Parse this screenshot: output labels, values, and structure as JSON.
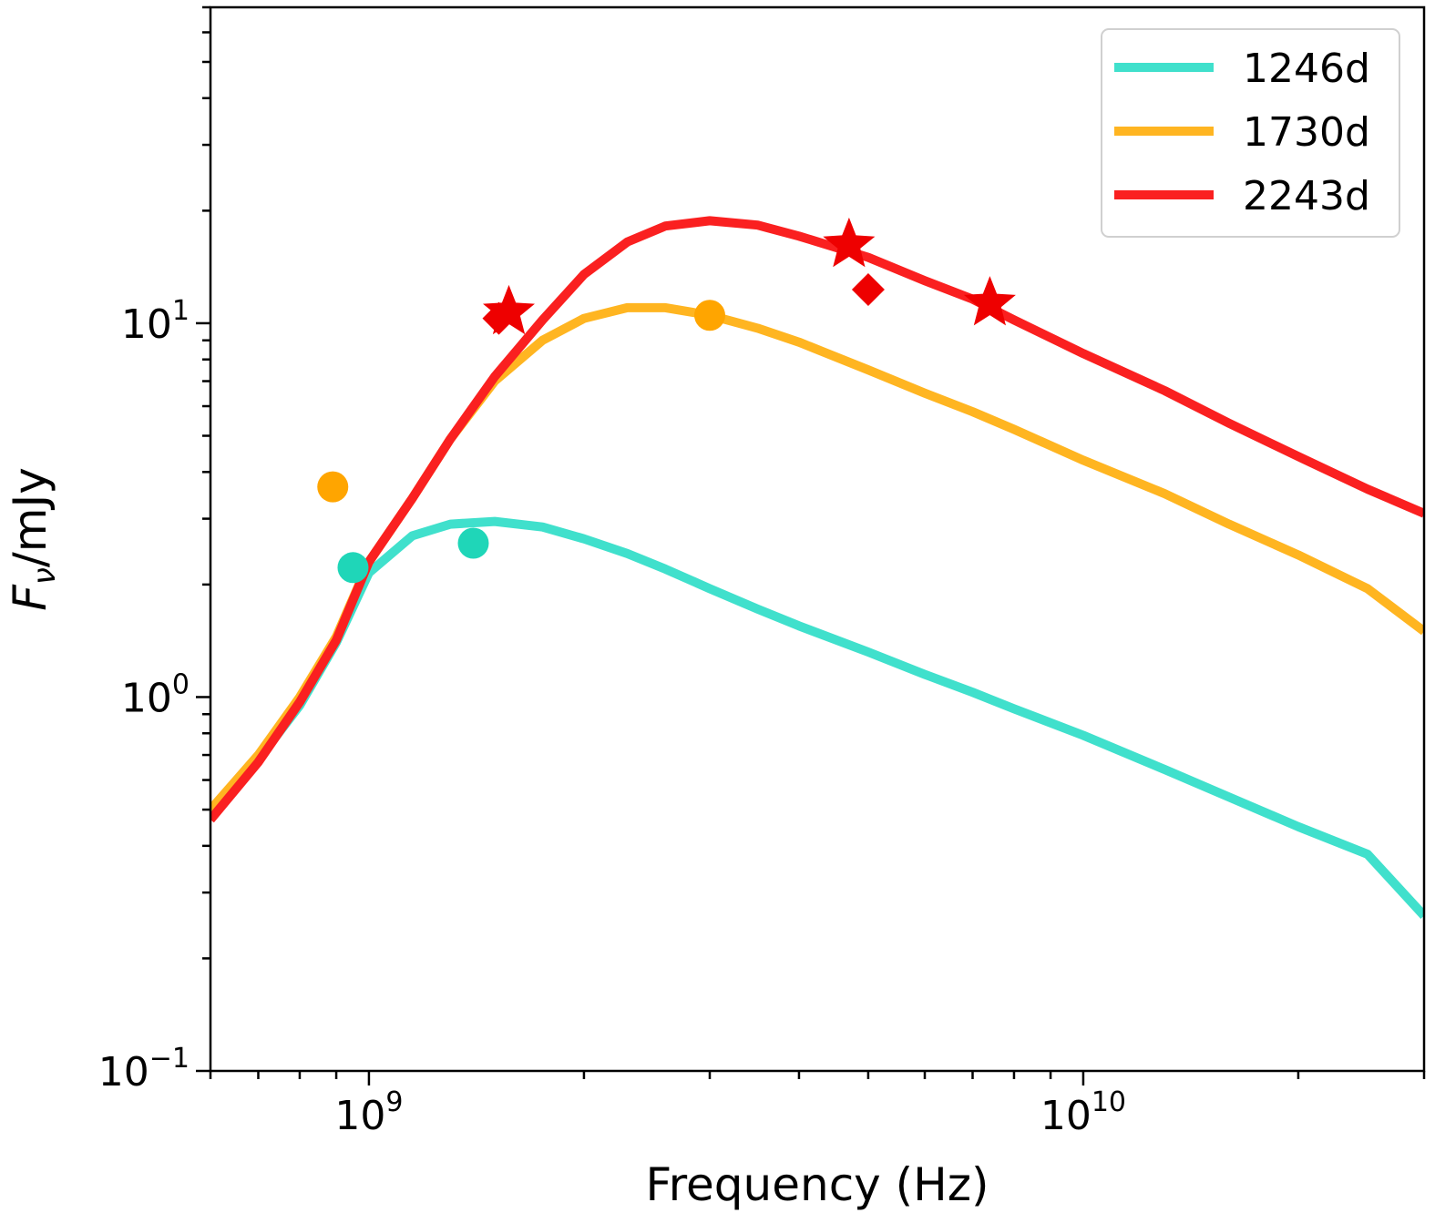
{
  "chart_data": {
    "type": "line",
    "title": "",
    "xlabel": "Frequency (Hz)",
    "ylabel_main": "F",
    "ylabel_sub": "ν",
    "ylabel_rest": "/mJy",
    "xscale": "log",
    "yscale": "log",
    "xlim": [
      600000000,
      30000000000
    ],
    "ylim": [
      0.1,
      70
    ],
    "x_ticks": [
      {
        "value": 1000000000,
        "base": "10",
        "exp": "9"
      },
      {
        "value": 10000000000,
        "base": "10",
        "exp": "10"
      }
    ],
    "y_ticks": [
      {
        "value": 0.1,
        "base": "10",
        "exp": "−1"
      },
      {
        "value": 1,
        "base": "10",
        "exp": "0"
      },
      {
        "value": 10,
        "base": "10",
        "exp": "1"
      }
    ],
    "legend_position": "top-right",
    "series": [
      {
        "name": "1246d",
        "color": "#40e0cc",
        "x": [
          600000000,
          700000000,
          800000000,
          900000000,
          1000000000,
          1150000000,
          1300000000,
          1500000000,
          1750000000,
          2000000000,
          2300000000,
          2600000000,
          3000000000,
          3500000000,
          4000000000,
          5000000000,
          6000000000,
          7000000000,
          8000000000,
          10000000000,
          13000000000,
          16000000000,
          20000000000,
          25000000000,
          30000000000
        ],
        "y": [
          0.5,
          0.68,
          0.95,
          1.4,
          2.15,
          2.7,
          2.9,
          2.95,
          2.85,
          2.65,
          2.42,
          2.2,
          1.95,
          1.72,
          1.55,
          1.32,
          1.15,
          1.03,
          0.93,
          0.79,
          0.64,
          0.54,
          0.45,
          0.38,
          0.26
        ]
      },
      {
        "name": "1730d",
        "color": "#ffb521",
        "x": [
          600000000,
          700000000,
          800000000,
          900000000,
          1000000000,
          1150000000,
          1300000000,
          1500000000,
          1750000000,
          2000000000,
          2300000000,
          2600000000,
          3000000000,
          3500000000,
          4000000000,
          5000000000,
          6000000000,
          7000000000,
          8000000000,
          10000000000,
          13000000000,
          16000000000,
          20000000000,
          25000000000,
          30000000000
        ],
        "y": [
          0.5,
          0.7,
          1.0,
          1.45,
          2.3,
          3.4,
          4.9,
          7.0,
          9.0,
          10.3,
          11.0,
          11.0,
          10.5,
          9.7,
          8.9,
          7.5,
          6.5,
          5.8,
          5.2,
          4.3,
          3.5,
          2.9,
          2.4,
          1.95,
          1.5
        ]
      },
      {
        "name": "2243d",
        "color": "#fa2020",
        "x": [
          600000000,
          700000000,
          800000000,
          900000000,
          1000000000,
          1150000000,
          1300000000,
          1500000000,
          1750000000,
          2000000000,
          2300000000,
          2600000000,
          3000000000,
          3500000000,
          4000000000,
          5000000000,
          6000000000,
          7000000000,
          8000000000,
          10000000000,
          13000000000,
          16000000000,
          20000000000,
          25000000000,
          30000000000
        ],
        "y": [
          0.47,
          0.67,
          0.97,
          1.42,
          2.3,
          3.4,
          4.9,
          7.2,
          10.2,
          13.5,
          16.5,
          18.2,
          18.8,
          18.3,
          17.1,
          15.0,
          13.0,
          11.6,
          10.2,
          8.3,
          6.6,
          5.4,
          4.4,
          3.6,
          3.1
        ]
      }
    ],
    "observations": [
      {
        "series": "1246d",
        "marker": "circle",
        "color": "#1fd6b8",
        "x": 950000000,
        "y": 2.22
      },
      {
        "series": "1246d",
        "marker": "circle",
        "color": "#1fd6b8",
        "x": 1400000000,
        "y": 2.58
      },
      {
        "series": "1730d",
        "marker": "circle",
        "color": "#ffa500",
        "x": 890000000,
        "y": 3.65
      },
      {
        "series": "1730d",
        "marker": "circle",
        "color": "#ffa500",
        "x": 3000000000,
        "y": 10.5
      },
      {
        "series": "2243d",
        "marker": "star",
        "color": "#ee0000",
        "x": 1570000000,
        "y": 10.7
      },
      {
        "series": "2243d",
        "marker": "star",
        "color": "#ee0000",
        "x": 4700000000,
        "y": 16.2
      },
      {
        "series": "2243d",
        "marker": "star",
        "color": "#ee0000",
        "x": 7400000000,
        "y": 11.3
      },
      {
        "series": "2243d",
        "marker": "diamond",
        "color": "#ee0000",
        "x": 1520000000,
        "y": 10.3
      },
      {
        "series": "2243d",
        "marker": "diamond",
        "color": "#ee0000",
        "x": 5000000000,
        "y": 12.3
      }
    ]
  }
}
